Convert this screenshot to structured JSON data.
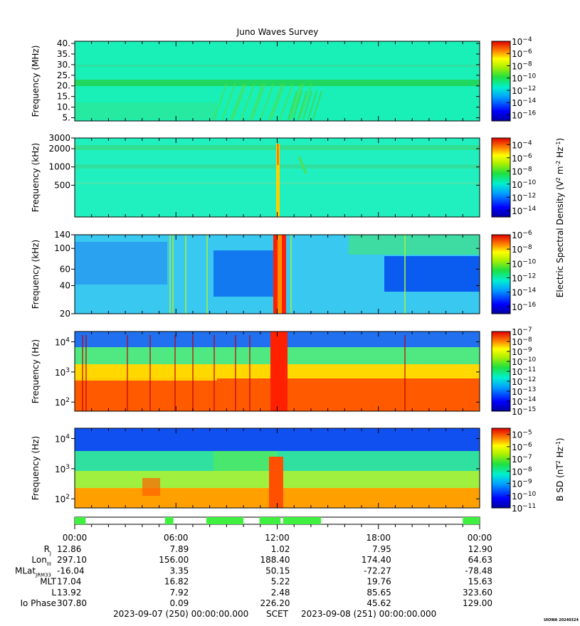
{
  "title": "Juno Waves Survey",
  "chart_data": {
    "type": "heatmap",
    "title": "Juno Waves Survey",
    "time_range": [
      "2023-09-07 (250) 00:00:00.000",
      "2023-09-08 (251) 00:00:00.000"
    ],
    "xaxis": {
      "label": "SCET",
      "start_label": "2023-09-07 (250) 00:00:00.000",
      "end_label": "2023-09-08 (251) 00:00:00.000",
      "ticks": [
        "00:00",
        "06:00",
        "12:00",
        "18:00",
        "00:00"
      ],
      "tick_hours": [
        0,
        6,
        12,
        18,
        24
      ]
    },
    "panels": [
      {
        "ylabel": "Frequency (MHz)",
        "yscale": "linear",
        "ylim": [
          3.5,
          41
        ],
        "yticks": [
          40,
          35,
          30,
          25,
          20,
          15,
          10,
          5
        ],
        "ytick_labels": [
          "40.",
          "35.",
          "30.",
          "25.",
          "20.",
          "15.",
          "10.",
          "5."
        ],
        "colorbar": {
          "scale": "log",
          "range_exp": [
            -17,
            -4
          ],
          "tick_exponents": [
            -4,
            -6,
            -8,
            -10,
            -12,
            -14,
            -16
          ]
        }
      },
      {
        "ylabel": "Frequency (kHz)",
        "yscale": "log",
        "ylim": [
          150,
          3000
        ],
        "yticks": [
          3000,
          2000,
          1000,
          500
        ],
        "ytick_labels": [
          "3000",
          "2000",
          "1000",
          "500"
        ],
        "colorbar": {
          "scale": "log",
          "range_exp": [
            -15,
            -3
          ],
          "tick_exponents": [
            -4,
            -6,
            -8,
            -10,
            -12,
            -14
          ]
        }
      },
      {
        "ylabel": "Frequency (kHz)",
        "yscale": "log",
        "ylim": [
          20,
          140
        ],
        "yticks": [
          140,
          100,
          60,
          40,
          20
        ],
        "ytick_labels": [
          "140",
          "100",
          "60",
          "40",
          "20"
        ],
        "colorbar": {
          "scale": "log",
          "range_exp": [
            -17,
            -6
          ],
          "tick_exponents": [
            -6,
            -8,
            -10,
            -12,
            -14,
            -16
          ]
        }
      },
      {
        "ylabel": "Frequency (Hz)",
        "yscale": "log",
        "ylim": [
          50,
          22000
        ],
        "yticks": [
          10000,
          1000,
          100
        ],
        "ytick_exponents": [
          4,
          3,
          2
        ],
        "colorbar": {
          "scale": "log",
          "range_exp": [
            -15,
            -7
          ],
          "tick_exponents": [
            -7,
            -8,
            -9,
            -10,
            -11,
            -12,
            -13,
            -14,
            -15
          ]
        }
      },
      {
        "ylabel": "Frequency (Hz)",
        "yscale": "log",
        "ylim": [
          50,
          22000
        ],
        "yticks": [
          10000,
          1000,
          100
        ],
        "ytick_exponents": [
          4,
          3,
          2
        ],
        "colorbar": {
          "scale": "log",
          "range_exp": [
            -11,
            -4.5
          ],
          "tick_exponents": [
            -5,
            -6,
            -7,
            -8,
            -9,
            -10,
            -11
          ]
        }
      }
    ],
    "colorbar_labels": {
      "electric": {
        "base": "Electric Spectral Density (V",
        "sup1": "2",
        "mid": " m",
        "sup2": "-2",
        "mid2": " Hz",
        "sup3": "-1",
        "end": ")"
      },
      "magnetic": {
        "base": "B SD (nT",
        "sup1": "2",
        "mid": " Hz",
        "sup2": "-1",
        "end": ")"
      }
    },
    "mode_bar": {
      "segments_hours": [
        [
          0,
          0.65
        ],
        [
          5.35,
          5.85
        ],
        [
          7.8,
          10.0
        ],
        [
          10.95,
          12.2
        ],
        [
          12.35,
          14.6
        ],
        [
          23.0,
          24.0
        ]
      ]
    },
    "ephemeris": {
      "times": [
        "00:00",
        "06:00",
        "12:00",
        "18:00",
        "00:00"
      ],
      "rows": [
        {
          "label": "R",
          "sub": "J",
          "values": [
            "12.86",
            "7.89",
            "1.02",
            "7.95",
            "12.90"
          ]
        },
        {
          "label": "Lon",
          "sub": "III",
          "values": [
            "297.10",
            "156.00",
            "188.40",
            "174.40",
            "64.63"
          ]
        },
        {
          "label": "MLat",
          "sub": "JRM33",
          "values": [
            "-16.04",
            "3.35",
            "50.15",
            "-72.27",
            "-78.48"
          ]
        },
        {
          "label": "MLT",
          "sub": "",
          "values": [
            "17.04",
            "16.82",
            "5.22",
            "19.76",
            "15.63"
          ]
        },
        {
          "label": "L",
          "sub": "",
          "values": [
            "13.92",
            "7.92",
            "2.48",
            "85.65",
            "323.60"
          ]
        },
        {
          "label": "Io Phase",
          "sub": "",
          "values": [
            "307.80",
            "0.09",
            "226.20",
            "45.62",
            "129.00"
          ]
        }
      ]
    }
  },
  "footer": {
    "start": "2023-09-07 (250) 00:00:00.000",
    "scet": "SCET",
    "end": "2023-09-08 (251) 00:00:00.000",
    "stamp": "UIOWA 20240324"
  }
}
